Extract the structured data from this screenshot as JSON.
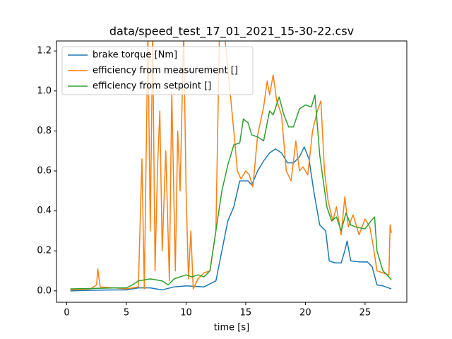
{
  "chart_data": {
    "type": "line",
    "title": "data/speed_test_17_01_2021_15-30-22.csv",
    "x_label": "time [s]",
    "xlim": [
      -0.86,
      28.5
    ],
    "ylim": [
      -0.057,
      1.25
    ],
    "xticks": [
      0,
      5,
      10,
      15,
      20,
      25
    ],
    "yticks": [
      {
        "value": 0,
        "label": "0.0"
      },
      0.2,
      0.4,
      0.6,
      0.8,
      {
        "value": 1,
        "label": "1.0"
      },
      1.2
    ],
    "legend": "upper left",
    "series": [
      {
        "name": "brake torque [Nm]",
        "color": "#1f77b4",
        "x": [
          0.3,
          2,
          4,
          5,
          6,
          7,
          8,
          9,
          10,
          11.5,
          12.5,
          13,
          13.5,
          14,
          14.5,
          15.2,
          15.5,
          16,
          16.5,
          17,
          17.5,
          18,
          18.5,
          19,
          19.5,
          19.9,
          20.3,
          20.7,
          21.2,
          21.7,
          22,
          22.5,
          23,
          23.3,
          23.5,
          23.8,
          24.5,
          25.2,
          25.6,
          26,
          26.5,
          27.2
        ],
        "values": [
          0,
          0.003,
          0.005,
          0.005,
          0.015,
          0.015,
          0.005,
          0.02,
          0.025,
          0.02,
          0.05,
          0.2,
          0.35,
          0.42,
          0.55,
          0.55,
          0.53,
          0.6,
          0.65,
          0.69,
          0.71,
          0.69,
          0.64,
          0.64,
          0.67,
          0.72,
          0.66,
          0.5,
          0.33,
          0.3,
          0.15,
          0.14,
          0.14,
          0.2,
          0.25,
          0.15,
          0.145,
          0.145,
          0.12,
          0.03,
          0.025,
          0.01
        ]
      },
      {
        "name": "efficiency from measurement []",
        "color": "#ff7f0e",
        "x": [
          0.3,
          2,
          2.5,
          2.6,
          2.8,
          4,
          5,
          6,
          6.3,
          6.5,
          6.8,
          7,
          7.2,
          7.4,
          7.6,
          7.8,
          8,
          8.3,
          8.6,
          8.8,
          9.1,
          9.3,
          9.5,
          9.8,
          10,
          10.2,
          10.4,
          10.6,
          11,
          11.5,
          12,
          12.5,
          12.8,
          13.2,
          13.6,
          14,
          14.3,
          14.6,
          15,
          15.3,
          15.6,
          16,
          16.5,
          16.8,
          17,
          17.3,
          17.6,
          18,
          18.4,
          18.8,
          19.2,
          19.5,
          19.8,
          20.2,
          20.6,
          21,
          21.3,
          21.6,
          21.9,
          22.3,
          22.6,
          23,
          23.3,
          23.6,
          24,
          24.5,
          25,
          25.4,
          25.7,
          26,
          26.5,
          27,
          27.1,
          27.2
        ],
        "values": [
          0.005,
          0.01,
          0.03,
          0.11,
          0.02,
          0.015,
          0.01,
          0.02,
          0.66,
          0.01,
          1.3,
          0.3,
          1.3,
          0.1,
          0.6,
          0.9,
          0.2,
          0.7,
          0.05,
          1.0,
          0.1,
          0.8,
          0.5,
          1.3,
          0.5,
          0.06,
          0.3,
          0.01,
          0.06,
          0.09,
          0.1,
          0.3,
          1.3,
          1.3,
          1.05,
          0.8,
          0.6,
          0.56,
          0.6,
          0.58,
          0.52,
          0.78,
          0.92,
          1.05,
          0.98,
          1.08,
          0.95,
          0.88,
          0.6,
          0.55,
          0.75,
          0.6,
          0.62,
          0.58,
          0.8,
          0.9,
          0.95,
          0.6,
          0.45,
          0.35,
          0.42,
          0.28,
          0.47,
          0.32,
          0.38,
          0.28,
          0.36,
          0.32,
          0.22,
          0.1,
          0.09,
          0.08,
          0.33,
          0.29
        ]
      },
      {
        "name": "efficiency from setpoint []",
        "color": "#2ca02c",
        "x": [
          0.3,
          2,
          4,
          5,
          5.5,
          6,
          7,
          8,
          8.5,
          9,
          10,
          10.5,
          11,
          11.5,
          12,
          12.5,
          13,
          13.5,
          14,
          14.5,
          14.8,
          15.2,
          15.5,
          16,
          16.5,
          17,
          17.3,
          17.8,
          18.2,
          18.6,
          19,
          19.5,
          20,
          20.5,
          20.8,
          21.2,
          21.8,
          22.2,
          22.6,
          23,
          23.4,
          23.8,
          24.2,
          25,
          25.5,
          25.8,
          26,
          26.5,
          27,
          27.2
        ],
        "values": [
          0.01,
          0.012,
          0.015,
          0.015,
          0.03,
          0.05,
          0.06,
          0.05,
          0.03,
          0.06,
          0.08,
          0.07,
          0.08,
          0.07,
          0.1,
          0.3,
          0.5,
          0.63,
          0.73,
          0.74,
          0.86,
          0.84,
          0.78,
          0.77,
          0.75,
          0.9,
          0.88,
          0.97,
          0.88,
          0.82,
          0.82,
          0.91,
          0.93,
          0.92,
          0.98,
          0.68,
          0.42,
          0.35,
          0.37,
          0.3,
          0.39,
          0.33,
          0.32,
          0.31,
          0.35,
          0.37,
          0.2,
          0.1,
          0.07,
          0.055
        ]
      }
    ]
  }
}
